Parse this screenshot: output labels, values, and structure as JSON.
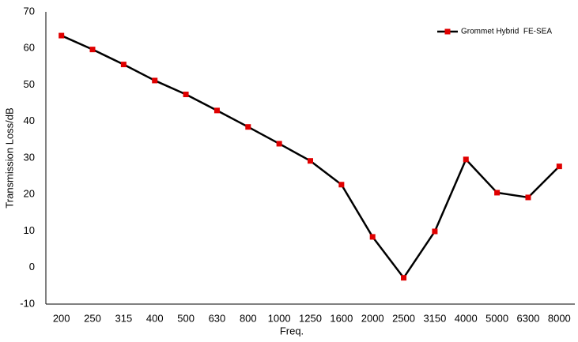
{
  "chart_data": {
    "type": "line",
    "x_label": "Freq.",
    "y_label": "Transmission Loss/dB",
    "categories": [
      "200",
      "250",
      "315",
      "400",
      "500",
      "630",
      "800",
      "1000",
      "1250",
      "1600",
      "2000",
      "2500",
      "3150",
      "4000",
      "5000",
      "6300",
      "8000"
    ],
    "series": [
      {
        "name": "Grommet Hybrid  FE-SEA",
        "color": "#000000",
        "marker_color": "#e00000",
        "values": [
          63.5,
          59.7,
          55.6,
          51.2,
          47.4,
          43.0,
          38.5,
          33.9,
          29.2,
          22.7,
          8.4,
          -2.8,
          9.9,
          29.6,
          20.5,
          19.2,
          27.7
        ]
      }
    ],
    "ylim": [
      -10,
      70
    ],
    "yticks": [
      -10,
      0,
      10,
      20,
      30,
      40,
      50,
      60,
      70
    ],
    "grid": false,
    "legend": "upper right"
  }
}
